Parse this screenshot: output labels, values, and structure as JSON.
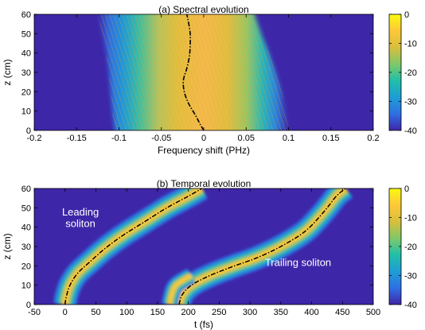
{
  "chart_data": [
    {
      "type": "heatmap",
      "title": "(a) Spectral evolution",
      "xlabel": "Frequency shift (PHz)",
      "ylabel": "z (cm)",
      "xlim": [
        -0.2,
        0.2
      ],
      "ylim": [
        0,
        60
      ],
      "xticks": [
        -0.2,
        -0.15,
        -0.1,
        -0.05,
        0,
        0.05,
        0.1,
        0.15,
        0.2
      ],
      "xtick_labels": [
        "-0.2",
        "-0.15",
        "-0.1",
        "-0.05",
        "0",
        "0.05",
        "0.1",
        "0.15",
        "0.2"
      ],
      "yticks": [
        0,
        10,
        20,
        30,
        40,
        50,
        60
      ],
      "ytick_labels": [
        "0",
        "10",
        "20",
        "30",
        "40",
        "50",
        "60"
      ],
      "colorbar": {
        "range": [
          -40,
          0
        ],
        "ticks": [
          0,
          -10,
          -20,
          -30,
          -40
        ],
        "tick_labels": [
          "0",
          "-10",
          "-20",
          "-30",
          "-40"
        ],
        "colormap": [
          "#3e26a8",
          "#2f6ee2",
          "#1f9cd6",
          "#22bfa8",
          "#7fc86a",
          "#d6bf3e",
          "#fec838",
          "#f9fb0e"
        ]
      },
      "background_color": "#3e26a8",
      "band": {
        "z": [
          0,
          10,
          20,
          30,
          40,
          50,
          60
        ],
        "left_edge": [
          -0.105,
          -0.108,
          -0.11,
          -0.112,
          -0.115,
          -0.12,
          -0.125
        ],
        "right_edge": [
          0.1,
          0.097,
          0.092,
          0.085,
          0.077,
          0.068,
          0.06
        ]
      },
      "series": [
        {
          "style": "dash-dot black",
          "points": [
            [
              0,
              0
            ],
            [
              -0.004,
              3
            ],
            [
              -0.01,
              8
            ],
            [
              -0.018,
              14
            ],
            [
              -0.023,
              20
            ],
            [
              -0.024,
              26
            ],
            [
              -0.02,
              32
            ],
            [
              -0.017,
              38
            ],
            [
              -0.016,
              44
            ],
            [
              -0.016,
              50
            ],
            [
              -0.018,
              56
            ],
            [
              -0.02,
              60
            ]
          ]
        }
      ]
    },
    {
      "type": "heatmap",
      "title": "(b) Temporal evolution",
      "xlabel": "t (fs)",
      "ylabel": "z (cm)",
      "xlim": [
        -50,
        500
      ],
      "ylim": [
        0,
        60
      ],
      "xticks": [
        -50,
        0,
        50,
        100,
        150,
        200,
        250,
        300,
        350,
        400,
        450,
        500
      ],
      "xtick_labels": [
        "-50",
        "0",
        "50",
        "100",
        "150",
        "200",
        "250",
        "300",
        "350",
        "400",
        "450",
        "500"
      ],
      "yticks": [
        0,
        10,
        20,
        30,
        40,
        50,
        60
      ],
      "ytick_labels": [
        "0",
        "10",
        "20",
        "30",
        "40",
        "50",
        "60"
      ],
      "colorbar": {
        "range": [
          -40,
          0
        ],
        "ticks": [
          0,
          -10,
          -20,
          -30,
          -40
        ],
        "tick_labels": [
          "0",
          "-10",
          "-20",
          "-30",
          "-40"
        ],
        "colormap": [
          "#3e26a8",
          "#2f6ee2",
          "#1f9cd6",
          "#22bfa8",
          "#7fc86a",
          "#d6bf3e",
          "#fec838",
          "#f9fb0e"
        ]
      },
      "background_color": "#3e26a8",
      "annotations": [
        {
          "text": "Leading",
          "x": 25,
          "y": 46
        },
        {
          "text": "soliton",
          "x": 25,
          "y": 40
        },
        {
          "text": "Trailing soliton",
          "x": 378,
          "y": 20
        }
      ],
      "series": [
        {
          "style": "dash-dot black",
          "points": [
            [
              0,
              0
            ],
            [
              2,
              4
            ],
            [
              8,
              10
            ],
            [
              20,
              16
            ],
            [
              40,
              22
            ],
            [
              65,
              29
            ],
            [
              95,
              36
            ],
            [
              130,
              43
            ],
            [
              165,
              50
            ],
            [
              200,
              56
            ],
            [
              222,
              60
            ]
          ]
        },
        {
          "style": "dash-dot black",
          "points": [
            [
              185,
              0
            ],
            [
              190,
              5
            ],
            [
              205,
              10
            ],
            [
              235,
              15
            ],
            [
              275,
              20
            ],
            [
              310,
              24
            ],
            [
              350,
              30
            ],
            [
              390,
              38
            ],
            [
              420,
              48
            ],
            [
              440,
              56
            ],
            [
              455,
              60
            ]
          ]
        }
      ],
      "secondary_bands": [
        {
          "points": [
            [
              170,
              0
            ],
            [
              172,
              4
            ],
            [
              180,
              10
            ],
            [
              205,
              15
            ]
          ]
        }
      ]
    }
  ]
}
